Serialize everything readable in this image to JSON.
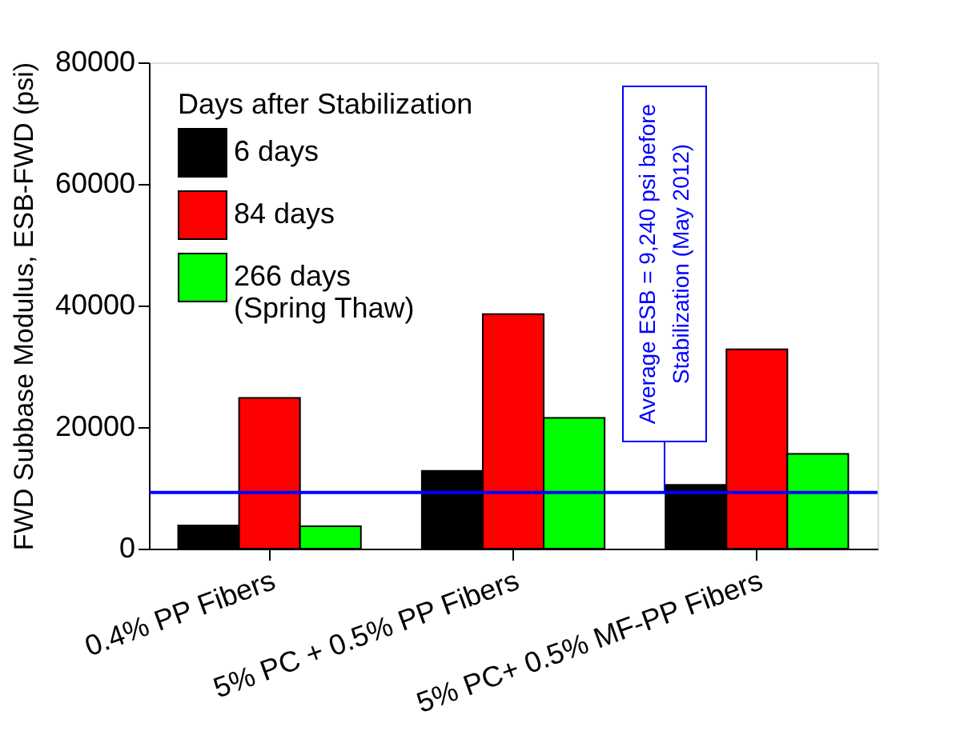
{
  "chart_data": {
    "type": "bar",
    "ylabel": "FWD Subbase Modulus, ESB-FWD (psi)",
    "legend_title": "Days after Stabilization",
    "categories": [
      "0.4% PP Fibers",
      "5% PC + 0.5% PP Fibers",
      "5% PC+ 0.5% MF-PP Fibers"
    ],
    "series": [
      {
        "name": "6 days",
        "color": "#000000",
        "values": [
          3800,
          12800,
          10500
        ]
      },
      {
        "name": "84 days",
        "color": "#ff0000",
        "values": [
          24800,
          38600,
          32800
        ]
      },
      {
        "name": "266 days\n(Spring Thaw)",
        "color": "#00ff00",
        "values": [
          3700,
          21500,
          15600
        ]
      }
    ],
    "ylim": [
      0,
      80000
    ],
    "yticks": [
      0,
      20000,
      40000,
      60000,
      80000
    ],
    "ref_lines": [
      {
        "axis": "y",
        "value": 9240,
        "color": "#0000ff",
        "label": "Average ESB = 9,240 psi before Stabilization (May 2012)"
      }
    ],
    "legend": "top left",
    "grid": false
  }
}
